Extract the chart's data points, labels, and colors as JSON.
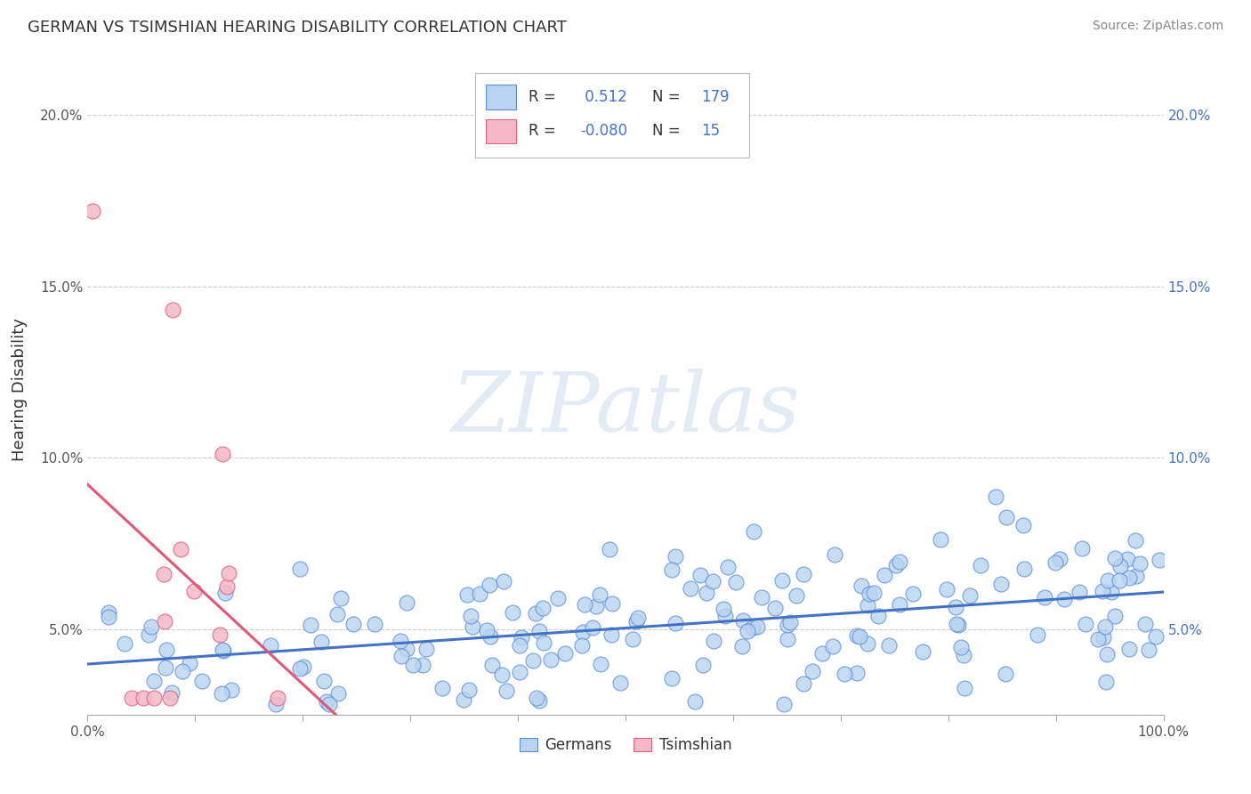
{
  "title": "GERMAN VS TSIMSHIAN HEARING DISABILITY CORRELATION CHART",
  "source": "Source: ZipAtlas.com",
  "ylabel": "Hearing Disability",
  "xlabel": "",
  "legend_german": {
    "R": 0.512,
    "N": 179
  },
  "legend_tsimshian": {
    "R": -0.08,
    "N": 15
  },
  "german_color": "#b8d4f0",
  "german_edge_color": "#5b8dd9",
  "german_line_color": "#4472c4",
  "tsimshian_color": "#f4b8c8",
  "tsimshian_edge_color": "#e06080",
  "tsimshian_line_color": "#e05878",
  "background_color": "#ffffff",
  "grid_color": "#cccccc",
  "xlim": [
    0.0,
    1.0
  ],
  "ylim": [
    0.025,
    0.215
  ],
  "yticks": [
    0.05,
    0.1,
    0.15,
    0.2
  ],
  "watermark": "ZIPatlas",
  "german_seed": 42,
  "tsimshian_seed": 123,
  "german_R": 0.512,
  "german_N": 179,
  "tsimshian_R": -0.08,
  "tsimshian_N": 15,
  "blue_text_color": "#4472c4",
  "dark_text_color": "#333333",
  "gray_text_color": "#888888"
}
